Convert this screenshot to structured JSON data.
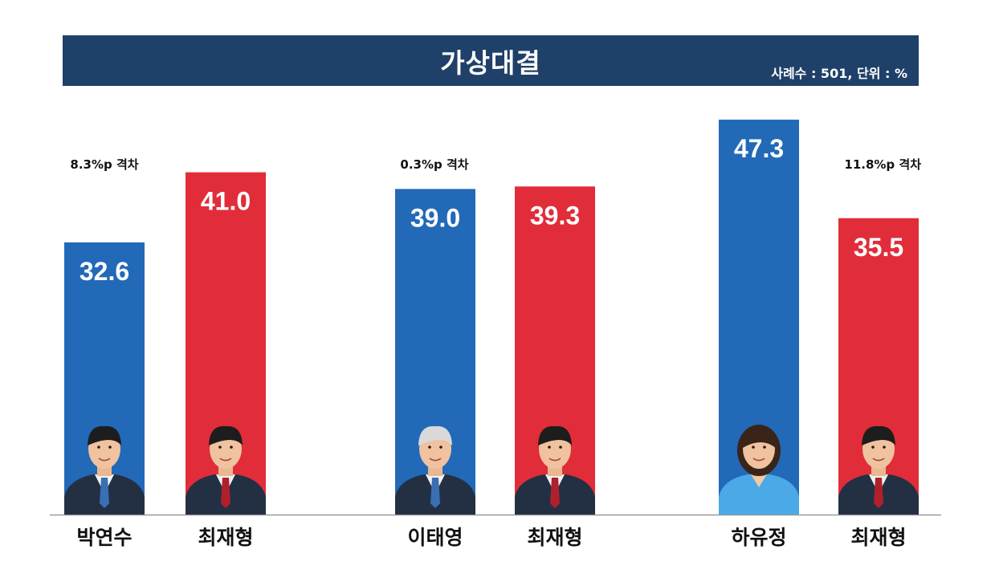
{
  "header": {
    "title": "가상대결",
    "meta": "사례수 : 501, 단위 : %"
  },
  "colors": {
    "header": "#1f4068",
    "blue": "#2269b8",
    "red": "#e12d39"
  },
  "chart_data": {
    "type": "bar",
    "title": "가상대결",
    "subtitle": "사례수 : 501, 단위 : %",
    "groups": [
      {
        "gap_label": "8.3%p 격차",
        "bars": [
          {
            "name": "박연수",
            "value": 32.6,
            "label": "32.6",
            "color": "blue"
          },
          {
            "name": "최재형",
            "value": 41.0,
            "label": "41.0",
            "color": "red"
          }
        ]
      },
      {
        "gap_label": "0.3%p 격차",
        "bars": [
          {
            "name": "이태영",
            "value": 39.0,
            "label": "39.0",
            "color": "blue"
          },
          {
            "name": "최재형",
            "value": 39.3,
            "label": "39.3",
            "color": "red"
          }
        ]
      },
      {
        "gap_label": "11.8%p 격차",
        "bars": [
          {
            "name": "하유정",
            "value": 47.3,
            "label": "47.3",
            "color": "blue"
          },
          {
            "name": "최재형",
            "value": 35.5,
            "label": "35.5",
            "color": "red"
          }
        ]
      }
    ],
    "ylim": [
      0,
      50
    ],
    "grid": false,
    "legend": "none"
  }
}
